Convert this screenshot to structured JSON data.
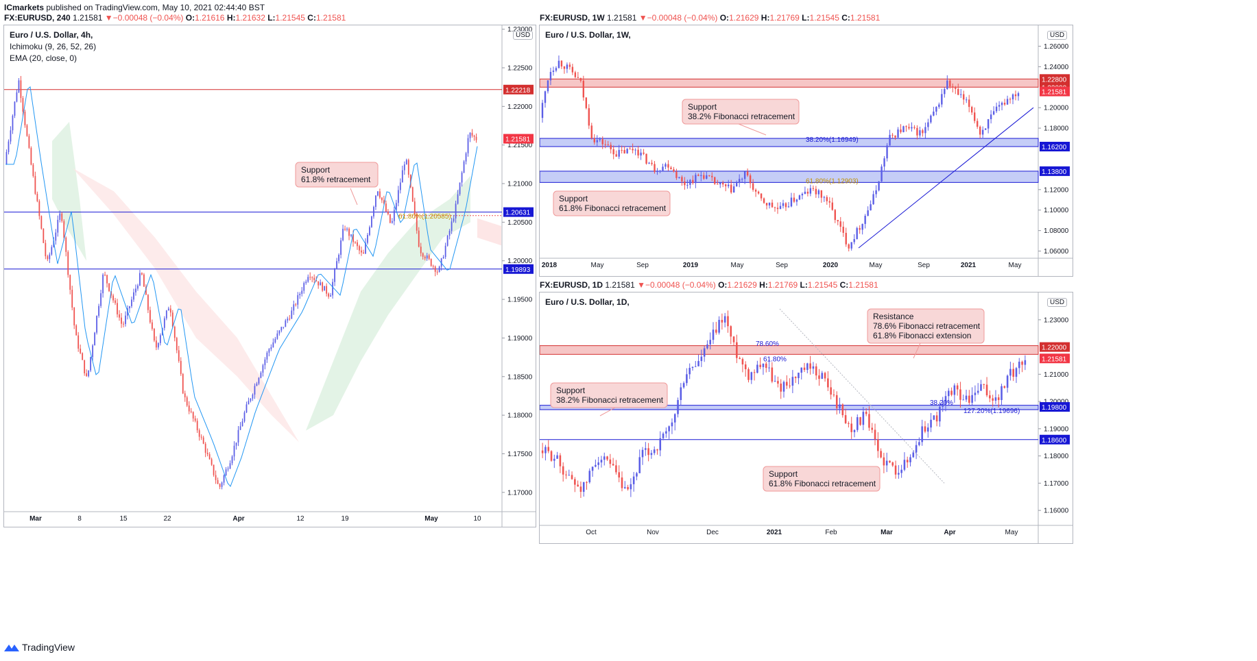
{
  "publisher": {
    "author": "ICmarkets",
    "text": "published on TradingView.com, May 10, 2021 02:44:40 BST"
  },
  "brand": "TradingView",
  "colors": {
    "up": "#5b5ee6",
    "down": "#ef5350",
    "support_line": "#1717d4",
    "resistance_line": "#d32f2f",
    "zone_blue": "#c5cdf7",
    "zone_red": "#f6c6c6",
    "ema": "#2196f3",
    "cloud_green": "#e0f2e3",
    "cloud_red": "#fde6e6"
  },
  "charts": [
    {
      "id": "c4h",
      "header": {
        "symbol": "FX:EURUSD, 240",
        "price": "1.21581",
        "change": "−0.00048 (−0.04%)",
        "o": "1.21616",
        "h": "1.21632",
        "l": "1.21545",
        "c": "1.21581"
      },
      "legend": {
        "title": "Euro / U.S. Dollar, 4h,",
        "ind1": "Ichimoku (9, 26, 52, 26)",
        "ind2": "EMA (20, close, 0)"
      },
      "currency": "USD"
    },
    {
      "id": "c1w",
      "header": {
        "symbol": "FX:EURUSD, 1W",
        "price": "1.21581",
        "change": "−0.00048 (−0.04%)",
        "o": "1.21629",
        "h": "1.21769",
        "l": "1.21545",
        "c": "1.21581"
      },
      "legend": {
        "title": "Euro / U.S. Dollar, 1W,"
      },
      "currency": "USD"
    },
    {
      "id": "c1d",
      "header": {
        "symbol": "FX:EURUSD, 1D",
        "price": "1.21581",
        "change": "−0.00048 (−0.04%)",
        "o": "1.21629",
        "h": "1.21769",
        "l": "1.21545",
        "c": "1.21581"
      },
      "legend": {
        "title": "Euro / U.S. Dollar, 1D,"
      },
      "currency": "USD"
    }
  ],
  "chart_data": [
    {
      "type": "candlestick",
      "title": "Euro / U.S. Dollar, 4h,",
      "ylim": [
        1.1675,
        1.2305
      ],
      "y_ticks": [
        "1.23000",
        "1.22500",
        "1.22000",
        "1.21500",
        "1.21000",
        "1.20500",
        "1.20000",
        "1.19500",
        "1.19000",
        "1.18500",
        "1.18000",
        "1.17500",
        "1.17000"
      ],
      "x_ticks": [
        "Mar",
        "8",
        "15",
        "22",
        "Apr",
        "12",
        "19",
        "May",
        "10"
      ],
      "price_tags": [
        {
          "value": 1.22218,
          "label": "1.22218",
          "kind": "resistance"
        },
        {
          "value": 1.21581,
          "label": "1.21581",
          "kind": "last"
        },
        {
          "value": 1.20631,
          "label": "1.20631",
          "kind": "support"
        },
        {
          "value": 1.19893,
          "label": "1.19893",
          "kind": "support"
        }
      ],
      "fib_label": "61.80%(1.20585)",
      "annotations": [
        {
          "lines": [
            "Support",
            "61.8% retracement"
          ]
        }
      ],
      "path": [
        [
          0,
          1.2125
        ],
        [
          0.03,
          1.2235
        ],
        [
          0.055,
          1.213
        ],
        [
          0.09,
          1.1995
        ],
        [
          0.12,
          1.2065
        ],
        [
          0.15,
          1.1905
        ],
        [
          0.175,
          1.1845
        ],
        [
          0.21,
          1.1985
        ],
        [
          0.25,
          1.1915
        ],
        [
          0.29,
          1.1985
        ],
        [
          0.32,
          1.1885
        ],
        [
          0.35,
          1.1945
        ],
        [
          0.38,
          1.1825
        ],
        [
          0.42,
          1.1765
        ],
        [
          0.455,
          1.1705
        ],
        [
          0.48,
          1.1745
        ],
        [
          0.51,
          1.1805
        ],
        [
          0.56,
          1.1885
        ],
        [
          0.61,
          1.1935
        ],
        [
          0.645,
          1.1985
        ],
        [
          0.69,
          1.1955
        ],
        [
          0.72,
          1.2045
        ],
        [
          0.76,
          1.2005
        ],
        [
          0.79,
          1.2095
        ],
        [
          0.82,
          1.2045
        ],
        [
          0.85,
          1.2135
        ],
        [
          0.88,
          1.2015
        ],
        [
          0.92,
          1.1985
        ],
        [
          0.955,
          1.2065
        ],
        [
          0.985,
          1.2165
        ],
        [
          1.0,
          1.2158
        ]
      ]
    },
    {
      "type": "candlestick",
      "title": "Euro / U.S. Dollar, 1W,",
      "ylim": [
        1.053,
        1.271
      ],
      "y_ticks": [
        "1.26000",
        "1.24000",
        "1.20000",
        "1.18000",
        "1.12000",
        "1.10000",
        "1.08000",
        "1.06000"
      ],
      "x_ticks": [
        "2018",
        "May",
        "Sep",
        "2019",
        "May",
        "Sep",
        "2020",
        "May",
        "Sep",
        "2021",
        "May"
      ],
      "price_tags": [
        {
          "value": 1.228,
          "label": "1.22800",
          "kind": "zone-top"
        },
        {
          "value": 1.22,
          "label": "1.22000",
          "kind": "zone-bottom"
        },
        {
          "value": 1.21581,
          "label": "1.21581",
          "kind": "last"
        },
        {
          "value": 1.162,
          "label": "1.16200",
          "kind": "support"
        },
        {
          "value": 1.138,
          "label": "1.13800",
          "kind": "support"
        }
      ],
      "fib_labels": [
        "38.20%(1.16949)",
        "61.80%(1.12903)"
      ],
      "annotations": [
        {
          "lines": [
            "Support",
            "38.2% Fibonacci retracement"
          ]
        },
        {
          "lines": [
            "Support",
            "61.8% Fibonacci retracement"
          ]
        }
      ],
      "path": [
        [
          0,
          1.19
        ],
        [
          0.02,
          1.235
        ],
        [
          0.04,
          1.245
        ],
        [
          0.06,
          1.238
        ],
        [
          0.085,
          1.225
        ],
        [
          0.11,
          1.17
        ],
        [
          0.135,
          1.165
        ],
        [
          0.16,
          1.155
        ],
        [
          0.2,
          1.16
        ],
        [
          0.24,
          1.14
        ],
        [
          0.27,
          1.145
        ],
        [
          0.3,
          1.125
        ],
        [
          0.34,
          1.135
        ],
        [
          0.37,
          1.125
        ],
        [
          0.4,
          1.12
        ],
        [
          0.43,
          1.135
        ],
        [
          0.46,
          1.11
        ],
        [
          0.5,
          1.1
        ],
        [
          0.53,
          1.11
        ],
        [
          0.57,
          1.12
        ],
        [
          0.6,
          1.11
        ],
        [
          0.625,
          1.085
        ],
        [
          0.645,
          1.065
        ],
        [
          0.67,
          1.085
        ],
        [
          0.7,
          1.115
        ],
        [
          0.73,
          1.17
        ],
        [
          0.76,
          1.18
        ],
        [
          0.8,
          1.175
        ],
        [
          0.83,
          1.2
        ],
        [
          0.85,
          1.225
        ],
        [
          0.87,
          1.215
        ],
        [
          0.9,
          1.2
        ],
        [
          0.92,
          1.175
        ],
        [
          0.95,
          1.195
        ],
        [
          0.98,
          1.21
        ],
        [
          1.0,
          1.2158
        ]
      ]
    },
    {
      "type": "candlestick",
      "title": "Euro / U.S. Dollar, 1D,",
      "ylim": [
        1.1545,
        1.2365
      ],
      "y_ticks": [
        "1.23000",
        "1.21000",
        "1.20000",
        "1.19000",
        "1.18000",
        "1.17000",
        "1.16000"
      ],
      "x_ticks": [
        "Oct",
        "Nov",
        "Dec",
        "2021",
        "Feb",
        "Mar",
        "Apr",
        "May"
      ],
      "price_tags": [
        {
          "value": 1.22,
          "label": "1.22000",
          "kind": "zone-top"
        },
        {
          "value": 1.21581,
          "label": "1.21581",
          "kind": "last"
        },
        {
          "value": 1.198,
          "label": "1.19800",
          "kind": "support"
        },
        {
          "value": 1.186,
          "label": "1.18600",
          "kind": "support"
        }
      ],
      "fib_labels": [
        "78.60%",
        "61.80%",
        "38.20%",
        "127.20%(1.19696)"
      ],
      "annotations": [
        {
          "lines": [
            "Resistance",
            "78.6% Fibonacci retracement",
            "61.8% Fibonacci extension"
          ]
        },
        {
          "lines": [
            "Support",
            "38.2% Fibonacci retracement"
          ]
        },
        {
          "lines": [
            "Support",
            "61.8% Fibonacci retracement"
          ]
        }
      ],
      "path": [
        [
          0,
          1.182
        ],
        [
          0.03,
          1.18
        ],
        [
          0.06,
          1.172
        ],
        [
          0.09,
          1.168
        ],
        [
          0.12,
          1.18
        ],
        [
          0.15,
          1.175
        ],
        [
          0.18,
          1.165
        ],
        [
          0.21,
          1.18
        ],
        [
          0.24,
          1.183
        ],
        [
          0.27,
          1.19
        ],
        [
          0.3,
          1.21
        ],
        [
          0.33,
          1.215
        ],
        [
          0.36,
          1.225
        ],
        [
          0.38,
          1.232
        ],
        [
          0.4,
          1.22
        ],
        [
          0.43,
          1.21
        ],
        [
          0.46,
          1.215
        ],
        [
          0.49,
          1.205
        ],
        [
          0.52,
          1.208
        ],
        [
          0.55,
          1.212
        ],
        [
          0.58,
          1.21
        ],
        [
          0.61,
          1.2
        ],
        [
          0.64,
          1.19
        ],
        [
          0.67,
          1.195
        ],
        [
          0.7,
          1.18
        ],
        [
          0.73,
          1.175
        ],
        [
          0.76,
          1.178
        ],
        [
          0.79,
          1.19
        ],
        [
          0.82,
          1.195
        ],
        [
          0.85,
          1.205
        ],
        [
          0.88,
          1.2
        ],
        [
          0.91,
          1.205
        ],
        [
          0.94,
          1.2
        ],
        [
          0.97,
          1.21
        ],
        [
          1.0,
          1.2158
        ]
      ]
    }
  ]
}
